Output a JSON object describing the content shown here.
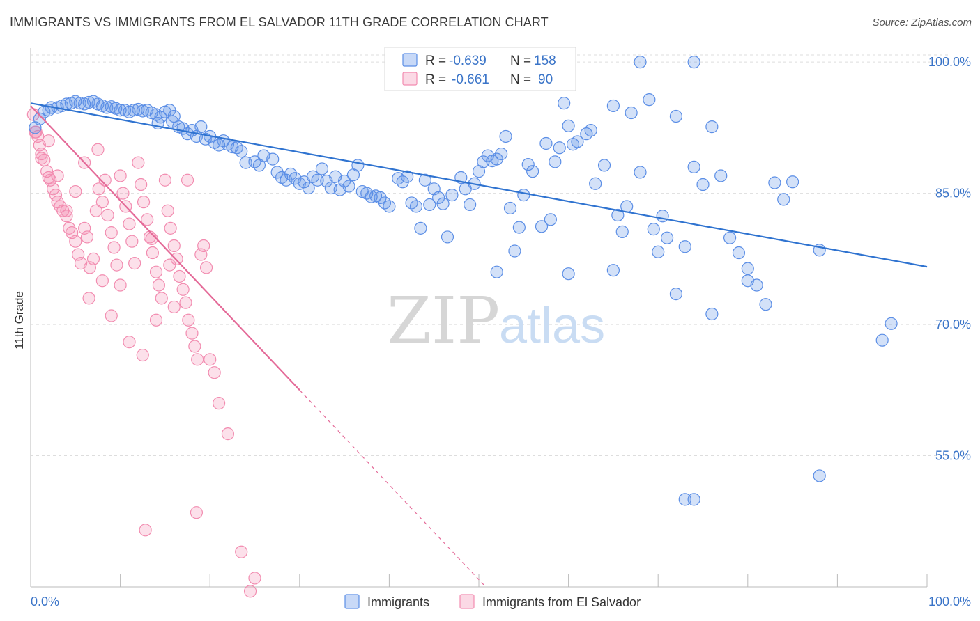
{
  "title": "IMMIGRANTS VS IMMIGRANTS FROM EL SALVADOR 11TH GRADE CORRELATION CHART",
  "source": "Source: ZipAtlas.com",
  "watermark": {
    "zip": "ZIP",
    "atlas": "atlas"
  },
  "colors": {
    "immigrants": "#5b8ee6",
    "immigrants_line": "#2f73d0",
    "el_salvador": "#f28cb0",
    "el_salvador_line": "#e46a98",
    "label_blue": "#3a74c8",
    "grid": "#dddddd"
  },
  "legend_stats": [
    {
      "r_label": "R =",
      "r_value": "-0.639",
      "n_label": "N =",
      "n_value": "158"
    },
    {
      "r_label": "R =",
      "r_value": "-0.661",
      "n_label": "N =",
      "n_value": "90"
    }
  ],
  "chart_data": {
    "type": "scatter",
    "title": "IMMIGRANTS VS IMMIGRANTS FROM EL SALVADOR 11TH GRADE CORRELATION CHART",
    "xlabel": "",
    "ylabel": "11th Grade",
    "xlim": [
      0,
      100
    ],
    "ylim": [
      40,
      102
    ],
    "x_tick_labels": [
      "0.0%",
      "100.0%"
    ],
    "y_ticks": [
      55,
      70,
      85,
      100
    ],
    "y_tick_labels": [
      "55.0%",
      "70.0%",
      "85.0%",
      "100.0%"
    ],
    "grid": true,
    "legend_position": "bottom",
    "series": [
      {
        "name": "Immigrants",
        "trend": {
          "x": [
            0,
            100
          ],
          "y": [
            95.3,
            76.6
          ]
        },
        "points": [
          [
            0.5,
            92.5
          ],
          [
            1,
            93.5
          ],
          [
            1.5,
            94.3
          ],
          [
            2,
            94.5
          ],
          [
            2.3,
            94.8
          ],
          [
            3,
            94.8
          ],
          [
            3.5,
            95.0
          ],
          [
            4,
            95.2
          ],
          [
            4.5,
            95.3
          ],
          [
            5,
            95.5
          ],
          [
            5.5,
            95.3
          ],
          [
            6,
            95.2
          ],
          [
            6.5,
            95.4
          ],
          [
            7,
            95.5
          ],
          [
            7.5,
            95.2
          ],
          [
            8,
            95.0
          ],
          [
            8.5,
            94.8
          ],
          [
            9,
            94.9
          ],
          [
            9.5,
            94.7
          ],
          [
            10,
            94.5
          ],
          [
            10.5,
            94.5
          ],
          [
            11,
            94.3
          ],
          [
            11.5,
            94.5
          ],
          [
            12,
            94.6
          ],
          [
            12.5,
            94.4
          ],
          [
            13,
            94.5
          ],
          [
            13.5,
            94.2
          ],
          [
            14,
            94.0
          ],
          [
            14.5,
            93.7
          ],
          [
            15,
            94.3
          ],
          [
            15.5,
            94.5
          ],
          [
            16,
            93.8
          ],
          [
            14.2,
            93.0
          ],
          [
            15.8,
            93.2
          ],
          [
            16.5,
            92.6
          ],
          [
            17,
            92.4
          ],
          [
            17.5,
            91.8
          ],
          [
            18,
            92.2
          ],
          [
            18.5,
            91.5
          ],
          [
            19,
            92.6
          ],
          [
            19.5,
            91.2
          ],
          [
            20,
            91.5
          ],
          [
            20.5,
            90.8
          ],
          [
            21,
            90.5
          ],
          [
            21.5,
            91.0
          ],
          [
            22,
            90.6
          ],
          [
            22.5,
            90.3
          ],
          [
            23,
            90.2
          ],
          [
            23.5,
            89.8
          ],
          [
            24,
            88.5
          ],
          [
            25,
            88.6
          ],
          [
            25.5,
            88.2
          ],
          [
            26,
            89.3
          ],
          [
            27,
            88.9
          ],
          [
            27.5,
            87.4
          ],
          [
            28,
            86.8
          ],
          [
            28.5,
            86.5
          ],
          [
            29,
            87.2
          ],
          [
            29.5,
            86.7
          ],
          [
            30,
            86.1
          ],
          [
            30.5,
            86.3
          ],
          [
            31,
            85.6
          ],
          [
            31.5,
            86.9
          ],
          [
            32,
            86.5
          ],
          [
            32.5,
            87.8
          ],
          [
            33,
            86.4
          ],
          [
            33.5,
            85.6
          ],
          [
            34,
            86.9
          ],
          [
            34.5,
            85.4
          ],
          [
            35,
            86.4
          ],
          [
            35.5,
            85.8
          ],
          [
            36,
            87.1
          ],
          [
            36.5,
            88.2
          ],
          [
            37,
            85.2
          ],
          [
            37.5,
            85.0
          ],
          [
            38,
            84.6
          ],
          [
            38.5,
            84.7
          ],
          [
            39,
            84.5
          ],
          [
            39.5,
            83.9
          ],
          [
            40,
            83.5
          ],
          [
            41,
            86.7
          ],
          [
            41.5,
            86.3
          ],
          [
            42,
            86.9
          ],
          [
            42.5,
            83.9
          ],
          [
            43,
            83.5
          ],
          [
            43.5,
            81.0
          ],
          [
            44,
            86.5
          ],
          [
            44.5,
            83.7
          ],
          [
            45,
            85.5
          ],
          [
            45.5,
            84.5
          ],
          [
            46,
            83.8
          ],
          [
            46.5,
            80.0
          ],
          [
            47,
            84.8
          ],
          [
            48,
            86.8
          ],
          [
            48.5,
            85.5
          ],
          [
            49,
            83.7
          ],
          [
            49.5,
            86.1
          ],
          [
            50,
            87.5
          ],
          [
            50.5,
            88.6
          ],
          [
            51,
            89.3
          ],
          [
            51.5,
            88.7
          ],
          [
            52,
            88.9
          ],
          [
            52.5,
            89.5
          ],
          [
            53,
            91.5
          ],
          [
            53.5,
            83.3
          ],
          [
            54,
            78.4
          ],
          [
            54.5,
            81.1
          ],
          [
            55,
            84.8
          ],
          [
            55.5,
            88.3
          ],
          [
            56,
            87.5
          ],
          [
            57,
            81.2
          ],
          [
            57.5,
            90.7
          ],
          [
            58,
            82.0
          ],
          [
            58.5,
            88.6
          ],
          [
            59,
            90.2
          ],
          [
            59.5,
            95.3
          ],
          [
            60,
            92.7
          ],
          [
            60.5,
            90.6
          ],
          [
            61,
            90.9
          ],
          [
            62,
            91.8
          ],
          [
            62.5,
            92.2
          ],
          [
            63,
            86.1
          ],
          [
            64,
            88.2
          ],
          [
            65,
            95.0
          ],
          [
            65.5,
            82.5
          ],
          [
            66,
            80.6
          ],
          [
            66.5,
            83.5
          ],
          [
            67,
            94.2
          ],
          [
            68,
            87.4
          ],
          [
            69,
            95.7
          ],
          [
            69.5,
            80.9
          ],
          [
            70,
            78.3
          ],
          [
            70.5,
            82.4
          ],
          [
            71,
            79.9
          ],
          [
            72,
            93.8
          ],
          [
            73,
            78.9
          ],
          [
            74,
            88.0
          ],
          [
            75,
            86.0
          ],
          [
            76,
            92.6
          ],
          [
            77,
            87.0
          ],
          [
            78,
            79.9
          ],
          [
            79,
            78.2
          ],
          [
            80,
            76.4
          ],
          [
            81,
            74.5
          ],
          [
            82,
            72.3
          ],
          [
            83,
            86.2
          ],
          [
            84,
            84.3
          ],
          [
            85,
            86.3
          ],
          [
            88,
            78.5
          ],
          [
            95,
            68.2
          ],
          [
            96,
            70.1
          ],
          [
            52,
            76.0
          ],
          [
            60,
            75.8
          ],
          [
            65,
            76.2
          ],
          [
            72,
            73.5
          ],
          [
            76,
            71.2
          ],
          [
            80,
            75.0
          ],
          [
            68,
            100.0
          ],
          [
            74,
            100.0
          ],
          [
            74,
            50.0
          ],
          [
            88,
            52.7
          ],
          [
            73,
            50.0
          ]
        ]
      },
      {
        "name": "Immigrants from El Salvador",
        "trend": {
          "x": [
            0,
            30
          ],
          "y": [
            95.0,
            62.5
          ]
        },
        "points": [
          [
            0.3,
            94.0
          ],
          [
            0.5,
            92.0
          ],
          [
            0.8,
            91.5
          ],
          [
            1.0,
            90.5
          ],
          [
            1.2,
            89.5
          ],
          [
            1.5,
            88.8
          ],
          [
            1.8,
            87.5
          ],
          [
            2.0,
            86.8
          ],
          [
            2.2,
            86.5
          ],
          [
            2.5,
            85.5
          ],
          [
            2.8,
            84.8
          ],
          [
            3.0,
            84.0
          ],
          [
            3.3,
            83.5
          ],
          [
            3.6,
            83.0
          ],
          [
            4.0,
            82.4
          ],
          [
            4.3,
            81.0
          ],
          [
            4.6,
            80.5
          ],
          [
            5.0,
            79.5
          ],
          [
            5.3,
            78.0
          ],
          [
            5.6,
            77.0
          ],
          [
            6.0,
            81.0
          ],
          [
            6.3,
            80.0
          ],
          [
            6.6,
            76.5
          ],
          [
            7.0,
            77.5
          ],
          [
            7.3,
            83.0
          ],
          [
            7.6,
            85.5
          ],
          [
            8.0,
            84.0
          ],
          [
            8.3,
            86.5
          ],
          [
            8.6,
            82.5
          ],
          [
            9.0,
            80.5
          ],
          [
            9.3,
            78.8
          ],
          [
            9.6,
            76.8
          ],
          [
            10.0,
            87.0
          ],
          [
            10.3,
            85.0
          ],
          [
            10.6,
            83.5
          ],
          [
            11.0,
            81.5
          ],
          [
            11.3,
            79.5
          ],
          [
            11.6,
            77.0
          ],
          [
            12.0,
            88.5
          ],
          [
            12.3,
            86.0
          ],
          [
            12.6,
            84.0
          ],
          [
            13.0,
            82.0
          ],
          [
            13.3,
            80.0
          ],
          [
            13.6,
            78.2
          ],
          [
            14.0,
            76.0
          ],
          [
            14.3,
            74.5
          ],
          [
            14.6,
            73.0
          ],
          [
            15.0,
            86.5
          ],
          [
            15.3,
            83.0
          ],
          [
            15.6,
            81.0
          ],
          [
            16.0,
            79.0
          ],
          [
            16.3,
            77.5
          ],
          [
            16.6,
            75.5
          ],
          [
            17.0,
            74.0
          ],
          [
            17.3,
            72.5
          ],
          [
            17.6,
            70.5
          ],
          [
            18.0,
            69.0
          ],
          [
            18.3,
            67.5
          ],
          [
            18.6,
            66.0
          ],
          [
            19.0,
            78.0
          ],
          [
            19.3,
            79.0
          ],
          [
            19.6,
            76.5
          ],
          [
            20.0,
            66.0
          ],
          [
            20.5,
            64.5
          ],
          [
            21.0,
            61.0
          ],
          [
            22.0,
            57.5
          ],
          [
            6.5,
            73.0
          ],
          [
            9.0,
            71.0
          ],
          [
            11.0,
            68.0
          ],
          [
            12.5,
            66.5
          ],
          [
            14.0,
            70.5
          ],
          [
            16.0,
            72.0
          ],
          [
            8.0,
            75.0
          ],
          [
            10.0,
            74.5
          ],
          [
            13.5,
            79.8
          ],
          [
            15.5,
            76.8
          ],
          [
            6.0,
            88.5
          ],
          [
            7.5,
            90.0
          ],
          [
            17.5,
            86.5
          ],
          [
            3.0,
            87.0
          ],
          [
            4.0,
            83.0
          ],
          [
            5.0,
            85.2
          ],
          [
            2.0,
            91.0
          ],
          [
            1.2,
            89.0
          ],
          [
            12.8,
            46.5
          ],
          [
            18.5,
            48.5
          ],
          [
            23.5,
            44.0
          ],
          [
            25.0,
            41.0
          ],
          [
            24.5,
            39.5
          ],
          [
            0.6,
            92.0
          ]
        ]
      }
    ]
  }
}
